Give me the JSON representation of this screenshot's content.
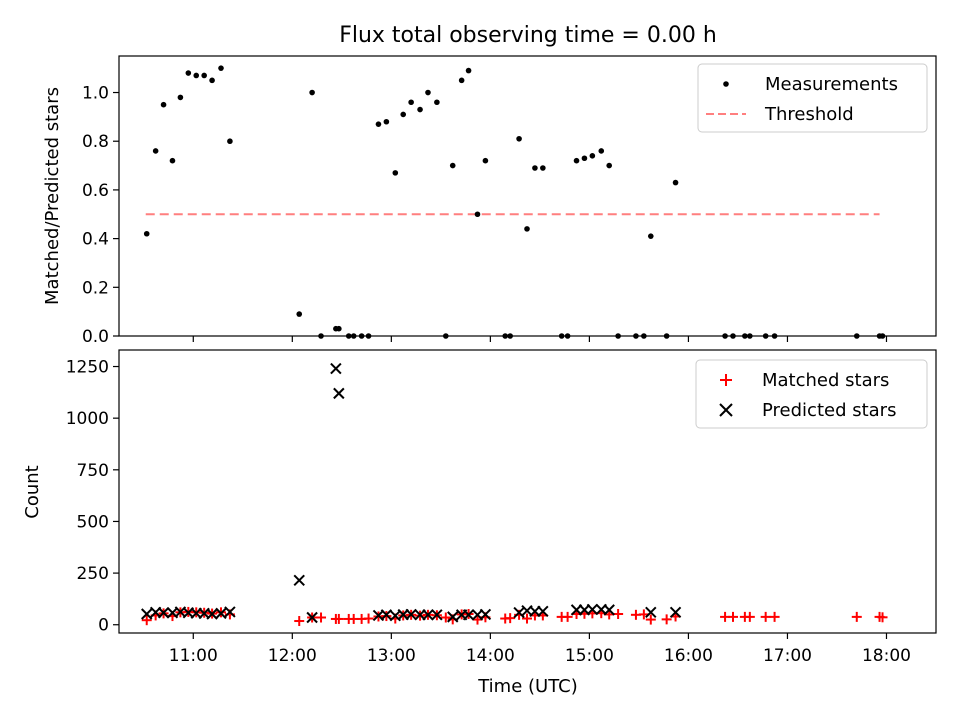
{
  "chart_data": [
    {
      "type": "scatter",
      "title": "Flux total observing time = 0.00 h",
      "ylabel": "Matched/Predicted stars",
      "ylim": [
        0,
        1.15
      ],
      "xlim_hours": [
        10.25,
        18.5
      ],
      "yticks": [
        "0.0",
        "0.2",
        "0.4",
        "0.6",
        "0.8",
        "1.0"
      ],
      "threshold": 0.5,
      "threshold_range_hours": [
        10.52,
        17.93
      ],
      "threshold_color": "#ff7f7f",
      "legend_position": "upper right",
      "legend": [
        "Measurements",
        "Threshold"
      ],
      "series": [
        {
          "name": "Measurements",
          "color": "#000000",
          "x_hours": [
            10.53,
            10.62,
            10.7,
            10.79,
            10.87,
            10.95,
            11.03,
            11.11,
            11.19,
            11.28,
            11.37,
            12.07,
            12.2,
            12.29,
            12.44,
            12.47,
            12.57,
            12.62,
            12.7,
            12.77,
            12.87,
            12.95,
            13.04,
            13.12,
            13.2,
            13.29,
            13.37,
            13.46,
            13.55,
            13.62,
            13.71,
            13.78,
            13.87,
            13.95,
            14.15,
            14.2,
            14.29,
            14.37,
            14.45,
            14.53,
            14.72,
            14.78,
            14.87,
            14.95,
            15.03,
            15.12,
            15.2,
            15.29,
            15.47,
            15.55,
            15.62,
            15.78,
            15.87,
            16.37,
            16.45,
            16.57,
            16.62,
            16.78,
            16.87,
            17.7,
            17.93,
            17.96
          ],
          "y": [
            0.42,
            0.76,
            0.95,
            0.72,
            0.98,
            1.08,
            1.07,
            1.07,
            1.05,
            1.1,
            0.8,
            0.09,
            1.0,
            0.0,
            0.03,
            0.03,
            0.0,
            0.0,
            0.0,
            0.0,
            0.87,
            0.88,
            0.67,
            0.91,
            0.96,
            0.93,
            1.0,
            0.96,
            0.0,
            0.7,
            1.05,
            1.09,
            0.5,
            0.72,
            0.0,
            0.0,
            0.81,
            0.44,
            0.69,
            0.69,
            0.0,
            0.0,
            0.72,
            0.73,
            0.74,
            0.76,
            0.7,
            0.0,
            0.0,
            0.0,
            0.41,
            0.0,
            0.63,
            0.0,
            0.0,
            0.0,
            0.0,
            0.0,
            0.0,
            0.0,
            0.0,
            0.0
          ]
        }
      ]
    },
    {
      "type": "scatter",
      "xlabel": "Time (UTC)",
      "ylabel": "Count",
      "ylim": [
        -40,
        1330
      ],
      "xlim_hours": [
        10.25,
        18.5
      ],
      "yticks": [
        "0",
        "250",
        "500",
        "750",
        "1000",
        "1250"
      ],
      "xticks": [
        "11:00",
        "12:00",
        "13:00",
        "14:00",
        "15:00",
        "16:00",
        "17:00",
        "18:00"
      ],
      "legend_position": "upper right",
      "legend": [
        "Matched stars",
        "Predicted stars"
      ],
      "series": [
        {
          "name": "Matched stars",
          "marker": "plus",
          "color": "#ff0000",
          "x_hours": [
            10.53,
            10.62,
            10.7,
            10.79,
            10.87,
            10.95,
            11.03,
            11.11,
            11.19,
            11.28,
            11.37,
            12.07,
            12.2,
            12.29,
            12.44,
            12.47,
            12.57,
            12.62,
            12.7,
            12.77,
            12.87,
            12.95,
            13.04,
            13.12,
            13.2,
            13.29,
            13.37,
            13.46,
            13.55,
            13.62,
            13.71,
            13.78,
            13.87,
            13.95,
            14.15,
            14.2,
            14.29,
            14.37,
            14.45,
            14.53,
            14.72,
            14.78,
            14.87,
            14.95,
            15.03,
            15.12,
            15.2,
            15.29,
            15.47,
            15.55,
            15.62,
            15.78,
            15.87,
            16.37,
            16.45,
            16.57,
            16.62,
            16.78,
            16.87,
            17.7,
            17.93,
            17.96
          ],
          "y": [
            22,
            45,
            55,
            42,
            60,
            62,
            60,
            58,
            54,
            60,
            50,
            18,
            35,
            35,
            28,
            28,
            28,
            28,
            28,
            30,
            40,
            42,
            30,
            45,
            48,
            44,
            48,
            46,
            35,
            26,
            50,
            52,
            25,
            36,
            30,
            32,
            48,
            30,
            45,
            45,
            38,
            38,
            52,
            53,
            55,
            56,
            50,
            52,
            48,
            50,
            25,
            26,
            40,
            38,
            38,
            38,
            38,
            38,
            38,
            38,
            38,
            36
          ]
        },
        {
          "name": "Predicted stars",
          "marker": "x",
          "color": "#000000",
          "x_hours": [
            10.53,
            10.62,
            10.7,
            10.79,
            10.87,
            10.95,
            11.03,
            11.11,
            11.19,
            11.28,
            11.37,
            12.07,
            12.2,
            12.44,
            12.47,
            12.87,
            12.95,
            13.04,
            13.12,
            13.2,
            13.29,
            13.37,
            13.46,
            13.62,
            13.71,
            13.78,
            13.87,
            13.95,
            14.29,
            14.37,
            14.45,
            14.53,
            14.87,
            14.95,
            15.03,
            15.12,
            15.2,
            15.62,
            15.87
          ],
          "y": [
            52,
            60,
            58,
            58,
            62,
            58,
            56,
            55,
            52,
            55,
            62,
            215,
            35,
            1240,
            1120,
            45,
            48,
            44,
            49,
            50,
            48,
            48,
            48,
            38,
            48,
            48,
            48,
            50,
            59,
            68,
            65,
            65,
            72,
            72,
            74,
            74,
            72,
            60,
            60
          ]
        }
      ]
    }
  ]
}
